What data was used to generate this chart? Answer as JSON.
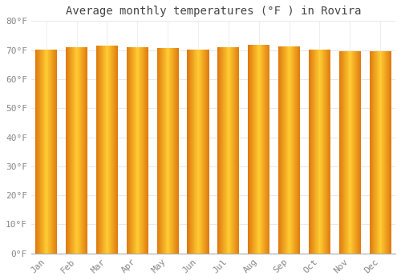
{
  "title": "Average monthly temperatures (°F ) in Rovira",
  "months": [
    "Jan",
    "Feb",
    "Mar",
    "Apr",
    "May",
    "Jun",
    "Jul",
    "Aug",
    "Sep",
    "Oct",
    "Nov",
    "Dec"
  ],
  "values": [
    70.3,
    71.1,
    71.5,
    70.9,
    70.7,
    70.3,
    70.9,
    71.8,
    71.3,
    70.2,
    69.6,
    69.6
  ],
  "ylim": [
    0,
    80
  ],
  "yticks": [
    0,
    10,
    20,
    30,
    40,
    50,
    60,
    70,
    80
  ],
  "ytick_labels": [
    "0°F",
    "10°F",
    "20°F",
    "30°F",
    "40°F",
    "50°F",
    "60°F",
    "70°F",
    "80°F"
  ],
  "bar_color_center": "#FFB300",
  "bar_color_edge": "#E07800",
  "bar_color_mid": "#FFCC44",
  "background_color": "#FFFFFF",
  "plot_bg_color": "#FFFFFF",
  "grid_color": "#E8E8F0",
  "title_fontsize": 10,
  "tick_fontsize": 8,
  "font_family": "monospace"
}
